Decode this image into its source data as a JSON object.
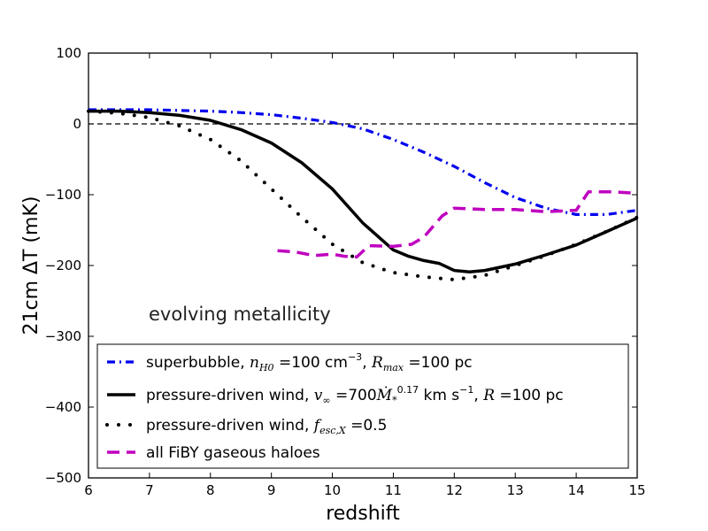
{
  "chart_data": {
    "type": "line",
    "xlabel": "redshift",
    "ylabel": "21cm ΔT (mK)",
    "xlim": [
      6,
      15
    ],
    "ylim": [
      -500,
      100
    ],
    "xticks": [
      6,
      7,
      8,
      9,
      10,
      11,
      12,
      13,
      14,
      15
    ],
    "yticks": [
      100,
      0,
      -100,
      -200,
      -300,
      -400,
      -500
    ],
    "xtick_labels": [
      "6",
      "7",
      "8",
      "9",
      "10",
      "11",
      "12",
      "13",
      "14",
      "15"
    ],
    "ytick_labels": [
      "100",
      "0",
      "−100",
      "−200",
      "−300",
      "−400",
      "−500"
    ],
    "reference_line": {
      "y": 0,
      "style": "dashed",
      "color": "#000000"
    },
    "annotation": "evolving metallicity",
    "legend_position": "lower-center",
    "series": [
      {
        "name": "superbubble",
        "legend_parts": [
          "superbubble, ",
          "n",
          "H0",
          " =100 cm",
          "−3",
          ", ",
          "R",
          "max",
          " =100 pc"
        ],
        "style": "dashdot",
        "color": "#0000ee",
        "x": [
          6,
          6.5,
          7,
          7.5,
          8,
          8.5,
          9,
          9.5,
          10,
          10.5,
          11,
          11.5,
          12,
          12.5,
          13,
          13.5,
          14,
          14.5,
          15
        ],
        "y": [
          20,
          20,
          20,
          19,
          18,
          16,
          13,
          8,
          2,
          -7,
          -22,
          -40,
          -60,
          -83,
          -104,
          -119,
          -128,
          -128,
          -122
        ]
      },
      {
        "name": "pressure-driven wind, v∞ = 700 M*^0.17 km s−1, R = 100 pc",
        "legend_parts": [
          "pressure-driven wind, ",
          "v",
          "∞",
          " =700",
          "Ṁ",
          "*",
          "0.17",
          " km s",
          "−1",
          ", ",
          "R",
          " =100 pc"
        ],
        "style": "solid",
        "color": "#000000",
        "x": [
          6,
          6.5,
          7,
          7.5,
          8,
          8.5,
          9,
          9.5,
          10,
          10.5,
          11,
          11.25,
          11.5,
          11.75,
          12,
          12.25,
          12.5,
          13,
          13.5,
          14,
          14.5,
          15
        ],
        "y": [
          18,
          18,
          16,
          12,
          5,
          -8,
          -27,
          -55,
          -92,
          -140,
          -178,
          -187,
          -193,
          -197,
          -207,
          -209,
          -207,
          -198,
          -185,
          -171,
          -152,
          -133
        ]
      },
      {
        "name": "pressure-driven wind, fesc,X = 0.5",
        "legend_parts": [
          "pressure-driven wind, ",
          "f",
          "esc,X",
          " =0.5"
        ],
        "style": "dotted",
        "color": "#000000",
        "x": [
          6,
          6.5,
          7,
          7.5,
          8,
          8.5,
          9,
          9.5,
          10,
          10.5,
          11,
          11.5,
          12,
          12.5,
          13,
          13.5,
          14,
          14.5,
          15
        ],
        "y": [
          18,
          15,
          9,
          -3,
          -22,
          -52,
          -92,
          -132,
          -170,
          -196,
          -210,
          -216,
          -220,
          -214,
          -200,
          -186,
          -170,
          -152,
          -132
        ]
      },
      {
        "name": "all FiBY gaseous haloes",
        "legend_parts": [
          "all FiBY gaseous haloes"
        ],
        "style": "dashed",
        "color": "#bf00bf",
        "x": [
          9.1,
          9.4,
          9.7,
          10,
          10.2,
          10.4,
          10.6,
          11,
          11.3,
          11.5,
          11.8,
          12,
          12.5,
          13,
          13.5,
          14,
          14.2,
          14.6,
          15
        ],
        "y": [
          -179,
          -181,
          -186,
          -184,
          -187,
          -188,
          -172,
          -173,
          -170,
          -160,
          -130,
          -119,
          -121,
          -121,
          -124,
          -122,
          -96,
          -96,
          -98
        ]
      }
    ]
  }
}
